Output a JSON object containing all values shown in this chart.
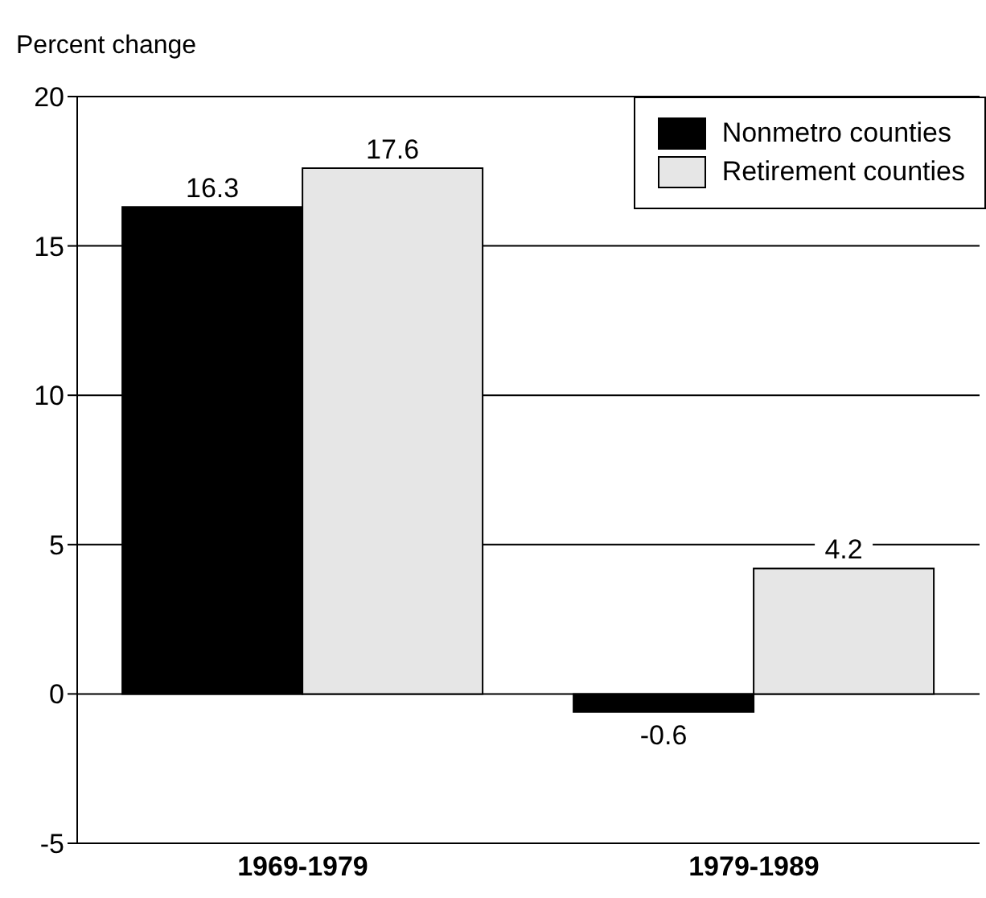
{
  "chart_data": {
    "type": "bar",
    "ylabel": "Percent change",
    "categories": [
      "1969-1979",
      "1979-1989"
    ],
    "series": [
      {
        "name": "Nonmetro counties",
        "color": "#000000",
        "values": [
          16.3,
          -0.6
        ]
      },
      {
        "name": "Retirement counties",
        "color": "#e6e6e6",
        "values": [
          17.6,
          4.2
        ]
      }
    ],
    "ylim": [
      -5,
      20
    ],
    "yticks": [
      -5,
      0,
      5,
      10,
      15,
      20
    ],
    "grid": "y",
    "legend": "top right",
    "data_labels": true
  }
}
